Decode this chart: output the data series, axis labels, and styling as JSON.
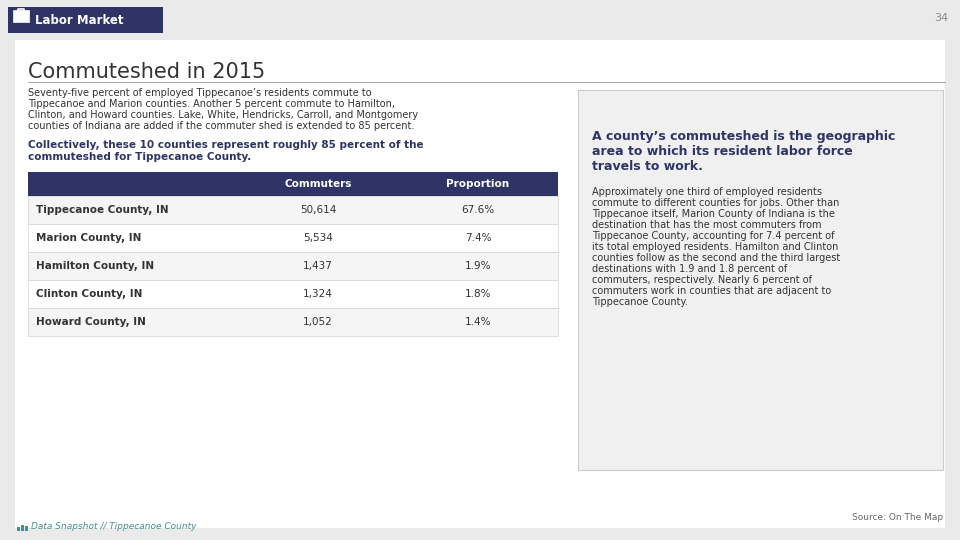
{
  "page_number": "34",
  "background_color": "#eaeaea",
  "header_bg_color": "#2e3566",
  "header_text": "Labor Market",
  "title": "Commuteshed in 2015",
  "title_color": "#333333",
  "intro_text": "Seventy-five percent of employed Tippecanoe’s residents commute to\nTippecanoe and Marion counties. Another 5 percent commute to Hamilton,\nClinton, and Howard counties. Lake, White, Hendricks, Carroll, and Montgomery\ncounties of Indiana are added if the commuter shed is extended to 85 percent.",
  "bold_text": "Collectively, these 10 counties represent roughly 85 percent of the\ncommuteshed for Tippecanoe County.",
  "bold_color": "#2e3566",
  "table_header_bg": "#2e3566",
  "table_header_color": "#ffffff",
  "table_col_headers": [
    "Commuters",
    "Proportion"
  ],
  "table_rows": [
    [
      "Tippecanoe County, IN",
      "50,614",
      "67.6%"
    ],
    [
      "Marion County, IN",
      "5,534",
      "7.4%"
    ],
    [
      "Hamilton County, IN",
      "1,437",
      "1.9%"
    ],
    [
      "Clinton County, IN",
      "1,324",
      "1.8%"
    ],
    [
      "Howard County, IN",
      "1,052",
      "1.4%"
    ]
  ],
  "table_row_bg_odd": "#f5f5f5",
  "table_row_bg_even": "#ffffff",
  "table_border_color": "#cccccc",
  "sidebar_bg": "#f0f0f0",
  "sidebar_border": "#cccccc",
  "sidebar_title": "A county’s commuteshed is the geographic\narea to which its resident labor force\ntravels to work.",
  "sidebar_title_color": "#2e3566",
  "sidebar_body": "Approximately one third of employed residents\ncommute to different counties for jobs. Other than\nTippecanoe itself, Marion County of Indiana is the\ndestination that has the most commuters from\nTippecanoe County, accounting for 7.4 percent of\nits total employed residents. Hamilton and Clinton\ncounties follow as the second and the third largest\ndestinations with 1.9 and 1.8 percent of\ncommuters, respectively. Nearly 6 percent of\ncommuters work in counties that are adjacent to\nTippecanoe County.",
  "sidebar_body_color": "#333333",
  "source_text": "Source: On The Map",
  "footer_text": "Data Snapshot // Tippecanoe County",
  "footer_color": "#4a9090",
  "content_bg": "#ffffff",
  "line_color": "#aaaaaa"
}
